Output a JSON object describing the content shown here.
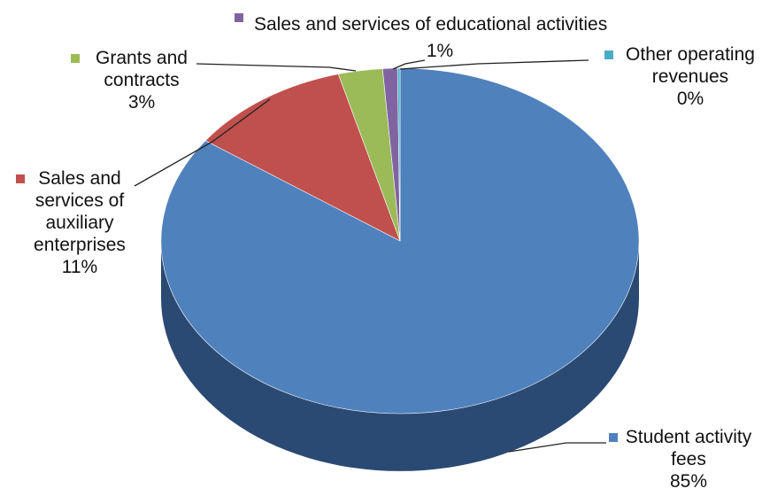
{
  "chart_data": {
    "type": "pie",
    "style": "3d",
    "title": "",
    "slices": [
      {
        "name": "Student activity fees",
        "value": 85,
        "label_lines": [
          "Student activity",
          "fees",
          "85%"
        ],
        "color": "#4F81BD",
        "side_color": "#2B4A73"
      },
      {
        "name": "Sales and services of auxiliary enterprises",
        "value": 11,
        "label_lines": [
          "Sales and",
          "services of",
          "auxiliary",
          "enterprises",
          "11%"
        ],
        "color": "#C0504D",
        "side_color": "#7A2F2D"
      },
      {
        "name": "Grants and contracts",
        "value": 3,
        "label_lines": [
          "Grants and",
          "contracts",
          "3%"
        ],
        "color": "#9BBB59",
        "side_color": "#5E7535"
      },
      {
        "name": "Sales and services of educational activities",
        "value": 1,
        "label_lines": [
          "Sales and services of educational activities",
          "1%"
        ],
        "color": "#8064A2",
        "side_color": "#4D3C63"
      },
      {
        "name": "Other operating revenues",
        "value": 0,
        "label_lines": [
          "Other operating",
          "revenues",
          "0%"
        ],
        "color": "#4BACC6",
        "side_color": "#2C6878"
      }
    ]
  }
}
